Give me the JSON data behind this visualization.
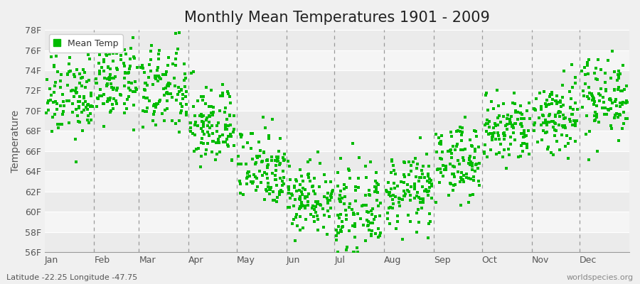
{
  "title": "Monthly Mean Temperatures 1901 - 2009",
  "ylabel": "Temperature",
  "xlabel_bottom_left": "Latitude -22.25 Longitude -47.75",
  "xlabel_bottom_right": "worldspecies.org",
  "ylim": [
    56,
    78
  ],
  "yticks": [
    56,
    58,
    60,
    62,
    64,
    66,
    68,
    70,
    72,
    74,
    76,
    78
  ],
  "ytick_labels": [
    "56F",
    "58F",
    "60F",
    "62F",
    "64F",
    "66F",
    "68F",
    "70F",
    "72F",
    "74F",
    "76F",
    "78F"
  ],
  "months": [
    "Jan",
    "Feb",
    "Mar",
    "Apr",
    "May",
    "Jun",
    "Jul",
    "Aug",
    "Sep",
    "Oct",
    "Nov",
    "Dec"
  ],
  "mean_temps_F": [
    71.5,
    73.0,
    72.0,
    68.5,
    64.5,
    61.5,
    60.0,
    62.0,
    65.0,
    68.0,
    69.5,
    71.5
  ],
  "std_temps_F": [
    2.2,
    2.0,
    2.2,
    2.0,
    2.0,
    1.8,
    2.0,
    1.8,
    1.8,
    1.8,
    2.0,
    2.0
  ],
  "n_years": 109,
  "marker_color": "#00BB00",
  "marker_size": 4,
  "plot_bg_color": "#F0F0F0",
  "band_color_odd": "#EBEBEB",
  "band_color_even": "#F5F5F5",
  "fig_bg_color": "#F0F0F0",
  "dashed_line_color": "#999999",
  "legend_bg": "#FFFFFF",
  "title_fontsize": 15,
  "axis_label_fontsize": 10,
  "tick_fontsize": 9,
  "seed": 12345,
  "month_days": [
    31,
    28,
    31,
    30,
    31,
    30,
    31,
    31,
    30,
    31,
    30,
    31
  ],
  "total_days": 365
}
